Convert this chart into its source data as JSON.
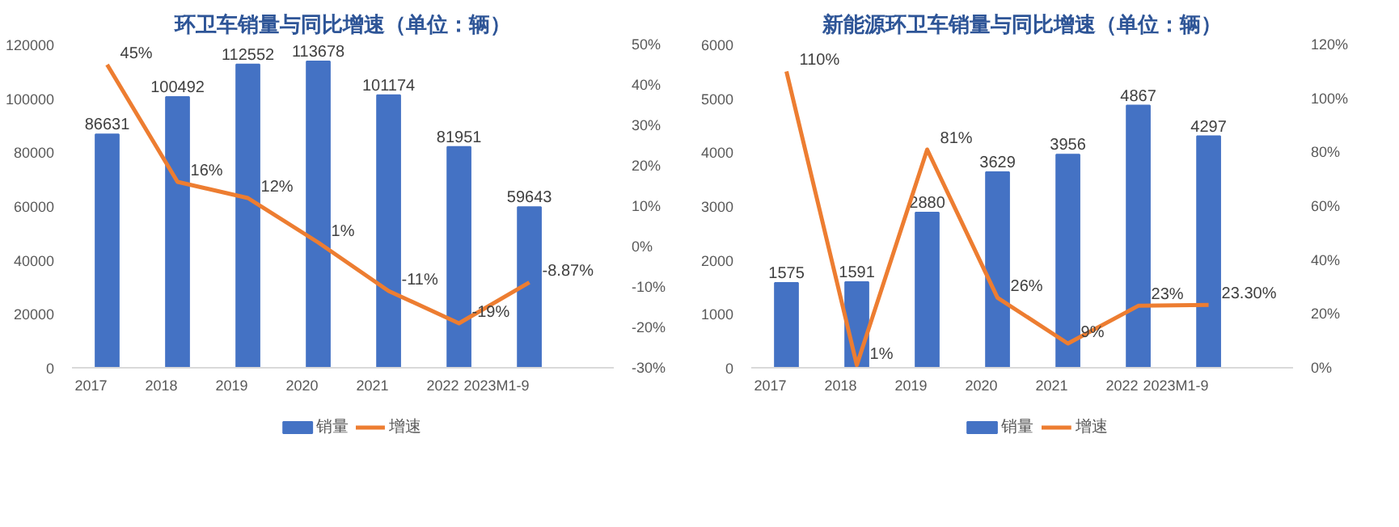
{
  "chart_data": [
    {
      "type": "bar",
      "title": "环卫车销量与同比增速（单位：辆）",
      "categories": [
        "2017",
        "2018",
        "2019",
        "2020",
        "2021",
        "2022",
        "2023M1-9"
      ],
      "series": [
        {
          "name": "销量",
          "type": "bar",
          "color": "#4472c4",
          "values": [
            86631,
            100492,
            112552,
            113678,
            101174,
            81951,
            59643
          ],
          "value_labels": [
            "86631",
            "100492",
            "112552",
            "113678",
            "101174",
            "81951",
            "59643"
          ]
        },
        {
          "name": "增速",
          "type": "line",
          "axis": "y2",
          "color": "#ed7d31",
          "values": [
            45,
            16,
            12,
            1,
            -11,
            -19,
            -8.87
          ],
          "value_labels": [
            "45%",
            "16%",
            "12%",
            "1%",
            "-11%",
            "-19%",
            "-8.87%"
          ]
        }
      ],
      "ylim": [
        0,
        120000
      ],
      "yticks": [
        0,
        20000,
        40000,
        60000,
        80000,
        100000,
        120000
      ],
      "y2lim": [
        -30,
        50
      ],
      "y2ticks": [
        {
          "value": -30,
          "label": "-30%"
        },
        {
          "value": -20,
          "label": "-20%"
        },
        {
          "value": -10,
          "label": "-10%"
        },
        {
          "value": 0,
          "label": "0%"
        },
        {
          "value": 10,
          "label": "10%"
        },
        {
          "value": 20,
          "label": "20%"
        },
        {
          "value": 30,
          "label": "30%"
        },
        {
          "value": 40,
          "label": "40%"
        },
        {
          "value": 50,
          "label": "50%"
        }
      ],
      "legend": "bottom",
      "grid": false,
      "marker": "none"
    },
    {
      "type": "bar",
      "title": "新能源环卫车销量与同比增速（单位：辆）",
      "categories": [
        "2017",
        "2018",
        "2019",
        "2020",
        "2021",
        "2022",
        "2023M1-9"
      ],
      "series": [
        {
          "name": "销量",
          "type": "bar",
          "color": "#4472c4",
          "values": [
            1575,
            1591,
            2880,
            3629,
            3956,
            4867,
            4297
          ],
          "value_labels": [
            "1575",
            "1591",
            "2880",
            "3629",
            "3956",
            "4867",
            "4297"
          ]
        },
        {
          "name": "增速",
          "type": "line",
          "axis": "y2",
          "color": "#ed7d31",
          "values": [
            110,
            1,
            81,
            26,
            9,
            23,
            23.3
          ],
          "value_labels": [
            "110%",
            "1%",
            "81%",
            "26%",
            "9%",
            "23%",
            "23.30%"
          ]
        }
      ],
      "ylim": [
        0,
        6000
      ],
      "yticks": [
        0,
        1000,
        2000,
        3000,
        4000,
        5000,
        6000
      ],
      "y2lim": [
        0,
        120
      ],
      "y2ticks": [
        {
          "value": 0,
          "label": "0%"
        },
        {
          "value": 20,
          "label": "20%"
        },
        {
          "value": 40,
          "label": "40%"
        },
        {
          "value": 60,
          "label": "60%"
        },
        {
          "value": 80,
          "label": "80%"
        },
        {
          "value": 100,
          "label": "100%"
        },
        {
          "value": 120,
          "label": "120%"
        }
      ],
      "legend": "bottom",
      "grid": false,
      "marker": "none"
    }
  ]
}
